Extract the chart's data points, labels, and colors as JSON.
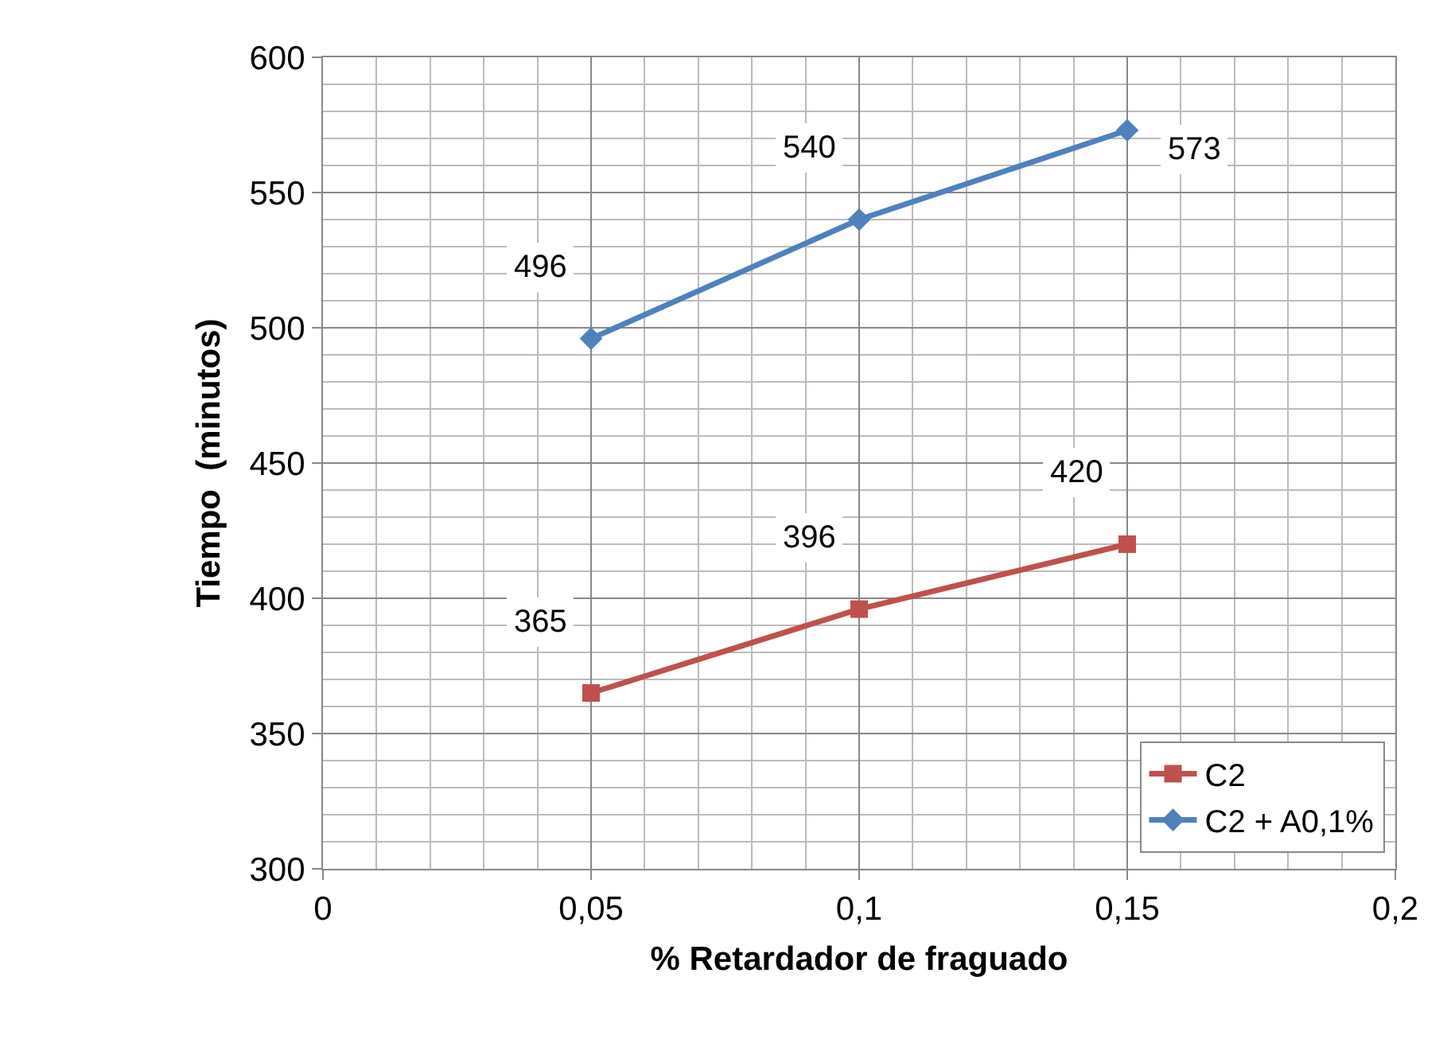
{
  "chart_data": {
    "type": "line",
    "xlabel": "% Retardador de fraguado",
    "ylabel": "Tiempo  (minutos)",
    "x": [
      0.05,
      0.1,
      0.15
    ],
    "series": [
      {
        "name": "C2",
        "color": "#c0504d",
        "marker": "square",
        "values": [
          365,
          396,
          420
        ]
      },
      {
        "name": "C2 + A0,1%",
        "color": "#4f81bd",
        "marker": "diamond",
        "values": [
          496,
          540,
          573
        ]
      }
    ],
    "xlim": [
      0,
      0.2
    ],
    "xticks": [
      0,
      {
        "value": 0.05,
        "label": "0,05"
      },
      {
        "value": 0.1,
        "label": "0,1"
      },
      {
        "value": 0.15,
        "label": "0,15"
      },
      {
        "value": 0.2,
        "label": "0,2"
      }
    ],
    "ylim": [
      300,
      600
    ],
    "yticks": [
      300,
      350,
      400,
      450,
      500,
      550,
      600
    ],
    "grid": true,
    "legend": "bottom right",
    "data_labels": true,
    "line_style": "solid"
  }
}
